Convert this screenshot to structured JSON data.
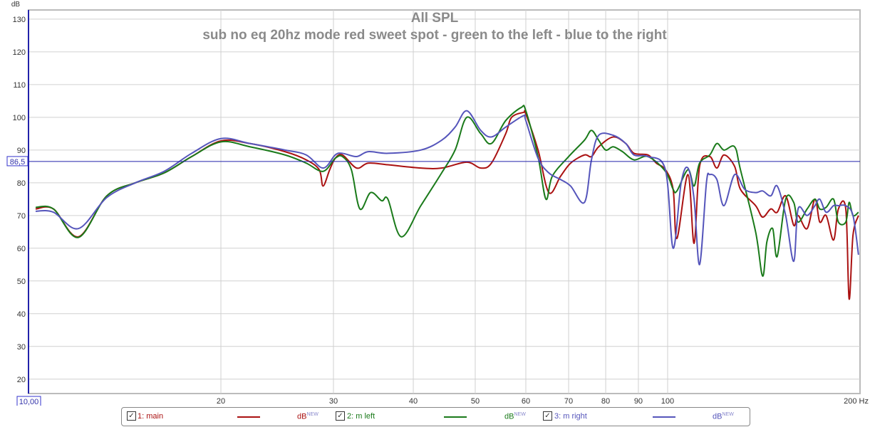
{
  "chart_data": {
    "type": "line",
    "title": "All SPL",
    "subtitle": "sub no eq 20hz mode red sweet spot - green to the left  - blue to the right",
    "ylabel": "dB",
    "xlabel": "Hz",
    "xscale": "log",
    "xlim": [
      10,
      200
    ],
    "ylim": [
      15.6,
      132.8
    ],
    "grid": true,
    "y_ticks": [
      20,
      30,
      40,
      50,
      60,
      70,
      80,
      90,
      100,
      110,
      120,
      130
    ],
    "x_ticks": [
      {
        "v": 20,
        "l": "20"
      },
      {
        "v": 30,
        "l": "30"
      },
      {
        "v": 40,
        "l": "40"
      },
      {
        "v": 50,
        "l": "50"
      },
      {
        "v": 60,
        "l": "60"
      },
      {
        "v": 70,
        "l": "70"
      },
      {
        "v": 80,
        "l": "80"
      },
      {
        "v": 90,
        "l": "90"
      },
      {
        "v": 100,
        "l": "100"
      },
      {
        "v": 200,
        "l": "200 Hz"
      }
    ],
    "x_start_label": "10,00",
    "marker_level": 86.5,
    "marker_label": "86,5",
    "legend_placement": "bottom",
    "series": [
      {
        "name": "1: main",
        "unit": "dB",
        "badge": "NEW",
        "color": "#aa1111",
        "points": [
          [
            10.26,
            72
          ],
          [
            10.94,
            72
          ],
          [
            11.97,
            63.5
          ],
          [
            13.26,
            76
          ],
          [
            14.7,
            80
          ],
          [
            16.3,
            83
          ],
          [
            18,
            88
          ],
          [
            20,
            92.8
          ],
          [
            22.2,
            92
          ],
          [
            25.2,
            89.5
          ],
          [
            27.2,
            87
          ],
          [
            28.5,
            84
          ],
          [
            28.9,
            79
          ],
          [
            29.6,
            84
          ],
          [
            30.2,
            87.5
          ],
          [
            31,
            88.5
          ],
          [
            32.6,
            84.5
          ],
          [
            34,
            86
          ],
          [
            36.5,
            85.5
          ],
          [
            41.1,
            84.5
          ],
          [
            44.3,
            84.5
          ],
          [
            48.5,
            86.3
          ],
          [
            51,
            84.5
          ],
          [
            53,
            86
          ],
          [
            55.8,
            95
          ],
          [
            57,
            100
          ],
          [
            59.5,
            101.5
          ],
          [
            60,
            101
          ],
          [
            62.7,
            90
          ],
          [
            65.2,
            77
          ],
          [
            68,
            82
          ],
          [
            70.5,
            86
          ],
          [
            74.1,
            88.5
          ],
          [
            76,
            88
          ],
          [
            78,
            91
          ],
          [
            82.2,
            94
          ],
          [
            86,
            92
          ],
          [
            88.6,
            89
          ],
          [
            93.2,
            88.5
          ],
          [
            96,
            86
          ],
          [
            99.2,
            84
          ],
          [
            102,
            78
          ],
          [
            103.4,
            63
          ],
          [
            107.6,
            82.5
          ],
          [
            110,
            61.5
          ],
          [
            112.2,
            85
          ],
          [
            116.4,
            88
          ],
          [
            119.4,
            84.5
          ],
          [
            122.5,
            88.5
          ],
          [
            127.3,
            85
          ],
          [
            130,
            78
          ],
          [
            137.3,
            73
          ],
          [
            140.8,
            69.5
          ],
          [
            145,
            72
          ],
          [
            148.4,
            71
          ],
          [
            153,
            76
          ],
          [
            157.5,
            67
          ],
          [
            160,
            70
          ],
          [
            165.3,
            66
          ],
          [
            170,
            75
          ],
          [
            173,
            68
          ],
          [
            177,
            70
          ],
          [
            181.8,
            62.5
          ],
          [
            185,
            72
          ],
          [
            190,
            72
          ],
          [
            192.3,
            44.5
          ],
          [
            195,
            64
          ],
          [
            198.9,
            70
          ]
        ]
      },
      {
        "name": "2: m left",
        "unit": "dB",
        "badge": "NEW",
        "color": "#1a7a1a",
        "points": [
          [
            10.26,
            72.5
          ],
          [
            10.94,
            72
          ],
          [
            11.97,
            63.3
          ],
          [
            13.26,
            76
          ],
          [
            14.7,
            80
          ],
          [
            16.3,
            83
          ],
          [
            18,
            88
          ],
          [
            20,
            92.5
          ],
          [
            22.2,
            91
          ],
          [
            25.2,
            88.5
          ],
          [
            27.2,
            86
          ],
          [
            28.9,
            83.5
          ],
          [
            30.2,
            87.5
          ],
          [
            31,
            88
          ],
          [
            32,
            84
          ],
          [
            33,
            72
          ],
          [
            34.3,
            77
          ],
          [
            35.7,
            74.5
          ],
          [
            36.5,
            75
          ],
          [
            38.3,
            63.5
          ],
          [
            41.1,
            73
          ],
          [
            44.3,
            83
          ],
          [
            46.5,
            90
          ],
          [
            48.5,
            100
          ],
          [
            51,
            95
          ],
          [
            53,
            92
          ],
          [
            55.8,
            99
          ],
          [
            59,
            103
          ],
          [
            60,
            102
          ],
          [
            62.7,
            88
          ],
          [
            64.5,
            75
          ],
          [
            66,
            82
          ],
          [
            70,
            88
          ],
          [
            74.1,
            93
          ],
          [
            76,
            96
          ],
          [
            78,
            93
          ],
          [
            80,
            90
          ],
          [
            82.2,
            91
          ],
          [
            85,
            89.5
          ],
          [
            88.6,
            87
          ],
          [
            93.2,
            88
          ],
          [
            99.2,
            83.5
          ],
          [
            102,
            78
          ],
          [
            103.4,
            77.5
          ],
          [
            107.6,
            84
          ],
          [
            110,
            79
          ],
          [
            112.2,
            86
          ],
          [
            116.4,
            88.5
          ],
          [
            119.4,
            92
          ],
          [
            122.5,
            90
          ],
          [
            127.3,
            91
          ],
          [
            130,
            84
          ],
          [
            137.3,
            65
          ],
          [
            140.8,
            51.5
          ],
          [
            143,
            62
          ],
          [
            146,
            66
          ],
          [
            148.4,
            57.5
          ],
          [
            153,
            75
          ],
          [
            157.5,
            74
          ],
          [
            160,
            68
          ],
          [
            165.3,
            72
          ],
          [
            170,
            75
          ],
          [
            173,
            72
          ],
          [
            177,
            72.5
          ],
          [
            181.8,
            75
          ],
          [
            185,
            68
          ],
          [
            190,
            68
          ],
          [
            192.3,
            74
          ],
          [
            195,
            70
          ],
          [
            198.9,
            71
          ]
        ]
      },
      {
        "name": "3: m right",
        "unit": "dB",
        "badge": "NEW",
        "color": "#5555bb",
        "points": [
          [
            10.26,
            71.3
          ],
          [
            10.94,
            71
          ],
          [
            11.97,
            66
          ],
          [
            13.26,
            75.5
          ],
          [
            14.7,
            80
          ],
          [
            16.3,
            83.5
          ],
          [
            18,
            89
          ],
          [
            20,
            93.5
          ],
          [
            22.2,
            92
          ],
          [
            25.2,
            90
          ],
          [
            27.2,
            88.5
          ],
          [
            28.9,
            84.5
          ],
          [
            30.2,
            88.5
          ],
          [
            31,
            89
          ],
          [
            32.6,
            88
          ],
          [
            34,
            89.5
          ],
          [
            36.5,
            89
          ],
          [
            41.1,
            90
          ],
          [
            44.3,
            93
          ],
          [
            46.5,
            97
          ],
          [
            48.5,
            102
          ],
          [
            51,
            96
          ],
          [
            53,
            94
          ],
          [
            55.8,
            97
          ],
          [
            59.5,
            100.5
          ],
          [
            60,
            99
          ],
          [
            62.7,
            87.5
          ],
          [
            65.2,
            83
          ],
          [
            68,
            81
          ],
          [
            70.5,
            79
          ],
          [
            74.1,
            74
          ],
          [
            76,
            87
          ],
          [
            78,
            94.5
          ],
          [
            82.2,
            94.5
          ],
          [
            86,
            92
          ],
          [
            88.6,
            88.5
          ],
          [
            93.2,
            88
          ],
          [
            99.2,
            84
          ],
          [
            102,
            60
          ],
          [
            105,
            80
          ],
          [
            107.6,
            84.5
          ],
          [
            110,
            75
          ],
          [
            112.2,
            55
          ],
          [
            115,
            80
          ],
          [
            116.4,
            82.5
          ],
          [
            119.4,
            81
          ],
          [
            122.5,
            73
          ],
          [
            127.3,
            82.5
          ],
          [
            132,
            78
          ],
          [
            137.3,
            77
          ],
          [
            140.8,
            77.5
          ],
          [
            145,
            76
          ],
          [
            148.4,
            79
          ],
          [
            153,
            70
          ],
          [
            157.5,
            56
          ],
          [
            160,
            72
          ],
          [
            165.3,
            70
          ],
          [
            170,
            73
          ],
          [
            173,
            75
          ],
          [
            177,
            71
          ],
          [
            181.8,
            73
          ],
          [
            185,
            73
          ],
          [
            190,
            73
          ],
          [
            195,
            70
          ],
          [
            198.9,
            58
          ]
        ]
      }
    ]
  }
}
